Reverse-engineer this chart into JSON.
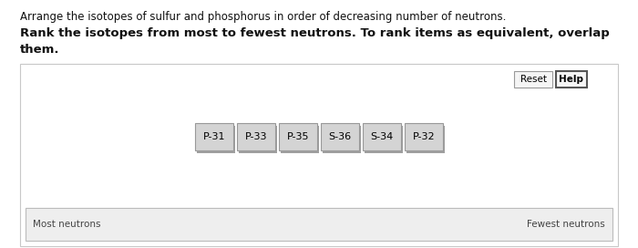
{
  "title_line1": "Arrange the isotopes of sulfur and phosphorus in order of decreasing number of neutrons.",
  "title_line2_part1": "Rank the isotopes from most to fewest neutrons. To rank items as equivalent, overlap",
  "title_line2_part2": "them.",
  "isotopes": [
    "P-31",
    "P-33",
    "P-35",
    "S-36",
    "S-34",
    "P-32"
  ],
  "box_bg": "#d4d4d4",
  "box_edge": "#999999",
  "box_shadow": "#a0a0a0",
  "panel_bg": "#ffffff",
  "panel_edge": "#c8c8c8",
  "bottom_bar_bg": "#eeeeee",
  "bottom_bar_edge": "#bbbbbb",
  "label_left": "Most neutrons",
  "label_right": "Fewest neutrons",
  "btn_reset": "Reset",
  "btn_help": "Help",
  "font_color_title": "#111111",
  "font_color_label": "#444444"
}
